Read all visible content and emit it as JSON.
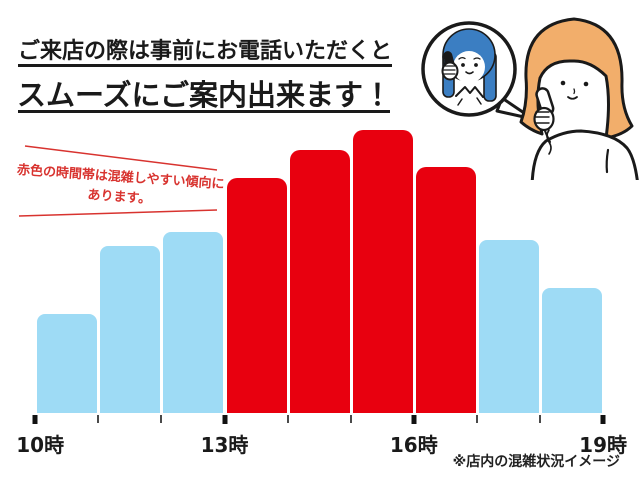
{
  "header": {
    "line1": "ご来店の際は事前にお電話いただくと",
    "line2": "スムーズにご案内出来ます！"
  },
  "annotation": {
    "line1": "赤色の時間帯は混雑しやすい傾向に",
    "line2": "あります。"
  },
  "footnote": {
    "text": "※店内の混雑状況イメージ"
  },
  "chart_data": {
    "type": "bar",
    "caption": "※店内の混雑状況イメージ",
    "x_axis_tick_labels": [
      "10時",
      "13時",
      "16時",
      "19時"
    ],
    "ylim": [
      0,
      100
    ],
    "grid": false,
    "legend": false,
    "bar_colors": {
      "normal": "#9EDBF5",
      "crowded": "#E8000F"
    },
    "bars": [
      {
        "hour": "10時",
        "value": 35,
        "crowded": false
      },
      {
        "hour": "11時",
        "value": 59,
        "crowded": false
      },
      {
        "hour": "12時",
        "value": 64,
        "crowded": false
      },
      {
        "hour": "13時",
        "value": 83,
        "crowded": true
      },
      {
        "hour": "14時",
        "value": 93,
        "crowded": true
      },
      {
        "hour": "15時",
        "value": 100,
        "crowded": true
      },
      {
        "hour": "16時",
        "value": 87,
        "crowded": true
      },
      {
        "hour": "17時",
        "value": 61,
        "crowded": false
      },
      {
        "hour": "18時",
        "value": 44,
        "crowded": false
      }
    ]
  },
  "colors": {
    "text": "#1A1A1A",
    "annotation_red": "#D8332F",
    "bar_blue": "#9EDBF5",
    "bar_red": "#E8000F",
    "staff_hair_blue": "#3B7EC2",
    "customer_hair_orange": "#F2AE6B"
  },
  "icons": {
    "illustration": "phone-call-illustration",
    "bubble": "speech-bubble",
    "staff": "staff-with-phone-icon",
    "customer": "customer-with-phone-icon"
  }
}
